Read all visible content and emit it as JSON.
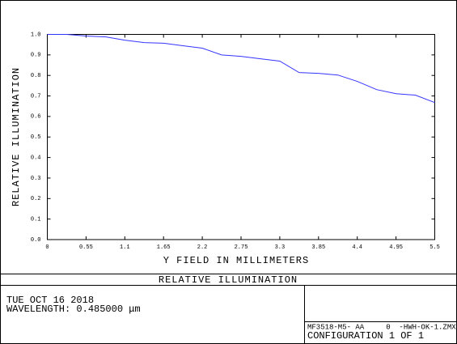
{
  "chart_data": {
    "type": "line",
    "title": "RELATIVE ILLUMINATION",
    "xlabel": "Y FIELD IN MILLIMETERS",
    "ylabel": "RELATIVE ILLUMINATION",
    "x": [
      0,
      0.275,
      0.55,
      0.825,
      1.1,
      1.375,
      1.65,
      1.925,
      2.2,
      2.475,
      2.75,
      3.025,
      3.3,
      3.575,
      3.85,
      4.125,
      4.4,
      4.675,
      4.95,
      5.225,
      5.5
    ],
    "values": [
      1.0,
      1.0,
      0.992,
      0.988,
      0.972,
      0.96,
      0.957,
      0.945,
      0.933,
      0.9,
      0.893,
      0.881,
      0.87,
      0.814,
      0.81,
      0.802,
      0.771,
      0.731,
      0.711,
      0.704,
      0.668
    ],
    "color": "#3434ff",
    "xlim": [
      0,
      5.5
    ],
    "xticks": [
      0,
      0.55,
      1.1,
      1.65,
      2.2,
      2.75,
      3.3,
      3.85,
      4.4,
      4.95,
      5.5
    ],
    "ylim": [
      0,
      1
    ],
    "yticks": [
      {
        "value": 0,
        "label": "0.0"
      },
      0.1,
      0.2,
      0.3,
      0.4,
      0.5,
      0.6,
      0.7,
      0.8,
      0.9,
      {
        "value": 1,
        "label": "1.0"
      }
    ],
    "grid": false
  },
  "footer": {
    "date": "TUE OCT 16 2018",
    "wavelength": "WAVELENGTH: 0.485000 μm",
    "file": "MF3518-M5- AA     0  -HWH-OK-1.ZMX",
    "configuration": "CONFIGURATION 1 OF 1"
  }
}
